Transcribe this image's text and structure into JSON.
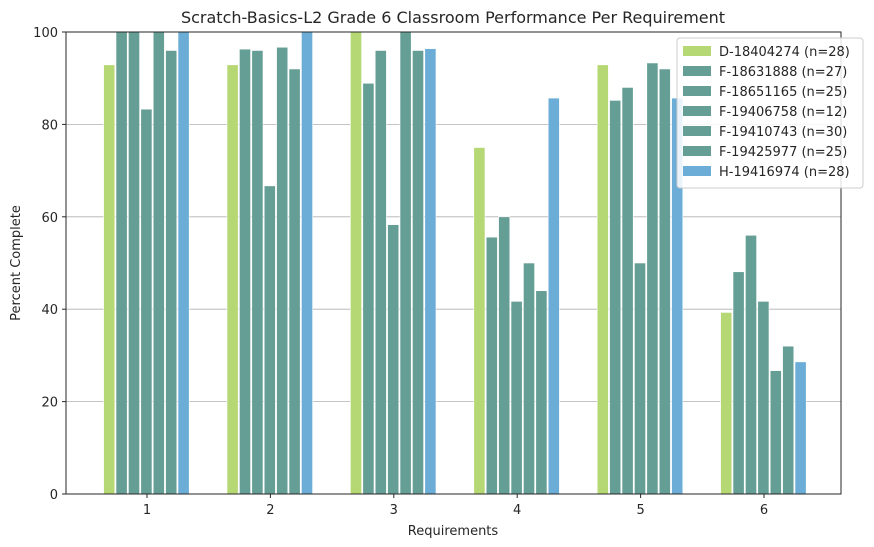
{
  "chart_data": {
    "type": "bar",
    "title": "Scratch-Basics-L2 Grade 6 Classroom Performance Per Requirement",
    "xlabel": "Requirements",
    "ylabel": "Percent Complete",
    "ylim": [
      0,
      100
    ],
    "yticks": [
      "0",
      "20",
      "40",
      "60",
      "80",
      "100"
    ],
    "categories": [
      "1",
      "2",
      "3",
      "4",
      "5",
      "6"
    ],
    "grid": "horizontal",
    "legend_position": "top-right",
    "series": [
      {
        "name": "D-18404274 (n=28)",
        "color": "#b5d774",
        "values": [
          92.9,
          92.9,
          100,
          75.0,
          92.9,
          39.3
        ]
      },
      {
        "name": "F-18631888 (n=27)",
        "color": "#659e94",
        "values": [
          100,
          96.3,
          88.9,
          55.6,
          85.2,
          48.1
        ]
      },
      {
        "name": "F-18651165 (n=25)",
        "color": "#659e94",
        "values": [
          100,
          96.0,
          96.0,
          60.0,
          88.0,
          56.0
        ]
      },
      {
        "name": "F-19406758 (n=12)",
        "color": "#659e94",
        "values": [
          83.3,
          66.7,
          58.3,
          41.7,
          50.0,
          41.7
        ]
      },
      {
        "name": "F-19410743 (n=30)",
        "color": "#659e94",
        "values": [
          100,
          96.7,
          100,
          50.0,
          93.3,
          26.7
        ]
      },
      {
        "name": "F-19425977 (n=25)",
        "color": "#659e94",
        "values": [
          96.0,
          92.0,
          96.0,
          44.0,
          92.0,
          32.0
        ]
      },
      {
        "name": "H-19416974 (n=28)",
        "color": "#6badd6",
        "values": [
          100,
          100,
          96.4,
          85.7,
          85.7,
          28.6
        ]
      }
    ]
  }
}
